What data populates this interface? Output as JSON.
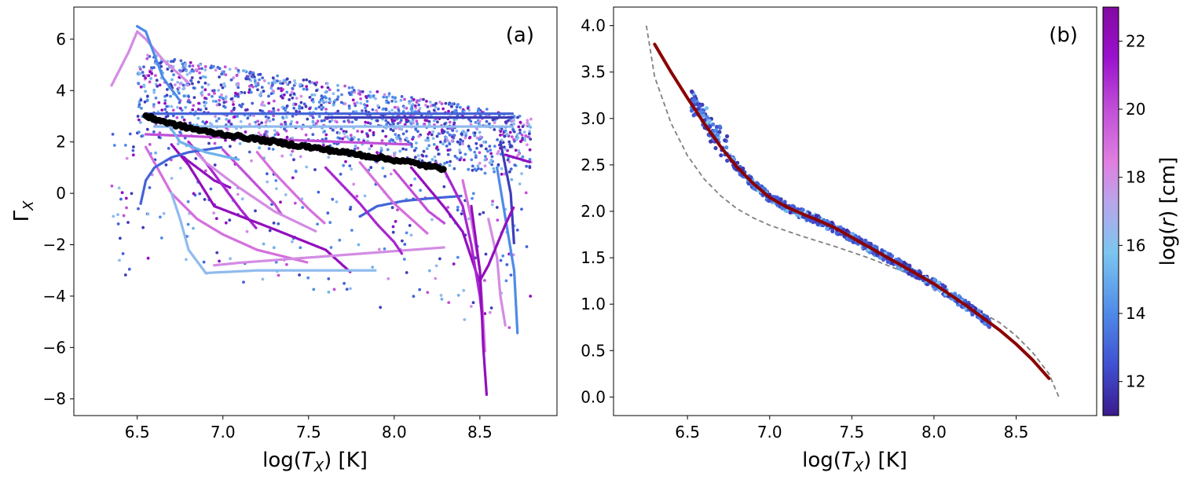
{
  "colors": {
    "cmap": [
      "#3b1a8c",
      "#3f4fd0",
      "#4f8ae8",
      "#7cc6f0",
      "#b8a6ea",
      "#e07fe0",
      "#c04fd8",
      "#9a10cc",
      "#820aa0"
    ],
    "fit_line": "#8b0000",
    "dashed_line": "#808080",
    "black_points": "#000000"
  },
  "chart_data": [
    {
      "panel": "(a)",
      "type": "scatter",
      "xlabel_prefix": "log(",
      "xlabel_var": "T",
      "xlabel_sub": "X",
      "xlabel_suffix": ")   [K]",
      "ylabel_var": "Γ",
      "ylabel_sub": "X",
      "xlim": [
        6.13,
        8.95
      ],
      "ylim": [
        -8.65,
        7.25
      ],
      "xticks": [
        6.5,
        7.0,
        7.5,
        8.0,
        8.5
      ],
      "xtick_labels": [
        "6.5",
        "7.0",
        "7.5",
        "8.0",
        "8.5"
      ],
      "yticks": [
        -8,
        -6,
        -4,
        -2,
        0,
        2,
        4,
        6
      ],
      "ytick_labels": [
        "−8",
        "−6",
        "−4",
        "−2",
        "0",
        "2",
        "4",
        "6"
      ],
      "black_track": {
        "x": [
          6.55,
          6.6,
          6.7,
          6.8,
          6.9,
          7.0,
          7.1,
          7.2,
          7.3,
          7.4,
          7.5,
          7.6,
          7.7,
          7.8,
          7.9,
          8.0,
          8.1,
          8.2,
          8.3
        ],
        "y": [
          3.0,
          2.9,
          2.7,
          2.55,
          2.4,
          2.3,
          2.2,
          2.1,
          2.0,
          1.9,
          1.8,
          1.7,
          1.6,
          1.5,
          1.4,
          1.3,
          1.2,
          1.05,
          0.95
        ]
      },
      "tracks": [
        {
          "x": [
            6.35,
            6.45,
            6.5,
            6.55,
            6.65,
            6.8
          ],
          "y": [
            4.2,
            5.5,
            6.3,
            6.0,
            5.2,
            4.3
          ],
          "c": 18
        },
        {
          "x": [
            6.5,
            6.55,
            6.6,
            6.65,
            6.75
          ],
          "y": [
            6.5,
            6.3,
            5.4,
            4.5,
            3.6
          ],
          "c": 14
        },
        {
          "x": [
            6.55,
            7.0,
            7.5,
            8.0,
            8.5,
            8.7
          ],
          "y": [
            3.1,
            3.1,
            3.1,
            3.1,
            3.1,
            3.1
          ],
          "c": 13
        },
        {
          "x": [
            6.6,
            7.2,
            7.8,
            8.4,
            8.7
          ],
          "y": [
            2.6,
            2.6,
            2.6,
            2.6,
            2.6
          ],
          "c": 16
        },
        {
          "x": [
            7.6,
            8.0,
            8.4,
            8.7
          ],
          "y": [
            2.95,
            2.95,
            2.95,
            2.95
          ],
          "c": 12
        },
        {
          "x": [
            6.75,
            6.85,
            6.95,
            7.05
          ],
          "y": [
            1.5,
            1.0,
            0.5,
            0.2
          ],
          "c": 22
        },
        {
          "x": [
            6.8,
            6.9,
            7.0,
            7.1,
            7.2
          ],
          "y": [
            2.0,
            1.2,
            0.3,
            -0.6,
            -1.4
          ],
          "c": 21
        },
        {
          "x": [
            7.0,
            7.1,
            7.2,
            7.3,
            7.35
          ],
          "y": [
            1.7,
            1.0,
            0.3,
            -0.4,
            -0.9
          ],
          "c": 20
        },
        {
          "x": [
            7.2,
            7.3,
            7.4,
            7.5,
            7.6
          ],
          "y": [
            1.6,
            0.8,
            0.1,
            -0.6,
            -1.2
          ],
          "c": 19
        },
        {
          "x": [
            6.8,
            6.9,
            7.1,
            7.3,
            7.55
          ],
          "y": [
            1.9,
            1.2,
            0.2,
            -0.7,
            -1.5
          ],
          "c": 18
        },
        {
          "x": [
            6.7,
            6.8,
            6.95,
            7.3,
            7.6,
            7.75
          ],
          "y": [
            1.9,
            1.1,
            -0.5,
            -1.4,
            -2.2,
            -3.1
          ],
          "c": 22
        },
        {
          "x": [
            6.55,
            6.6,
            6.7,
            6.85,
            7.0,
            7.2,
            7.5
          ],
          "y": [
            1.8,
            1.2,
            0.0,
            -1.0,
            -1.6,
            -2.2,
            -2.7
          ],
          "c": 19
        },
        {
          "x": [
            6.52,
            6.55,
            6.6,
            6.7,
            6.8,
            6.9,
            7.0
          ],
          "y": [
            -0.4,
            0.5,
            1.0,
            1.4,
            1.6,
            1.7,
            1.8
          ],
          "c": 13
        },
        {
          "x": [
            6.7,
            6.75,
            6.8,
            6.9,
            7.2,
            7.6,
            7.9
          ],
          "y": [
            0.0,
            -1.0,
            -2.2,
            -3.1,
            -3.0,
            -3.0,
            -3.0
          ],
          "c": 16
        },
        {
          "x": [
            6.95,
            7.1,
            7.3,
            7.5,
            7.7,
            7.9,
            8.1,
            8.3
          ],
          "y": [
            -2.8,
            -2.7,
            -2.6,
            -2.5,
            -2.4,
            -2.3,
            -2.2,
            -2.1
          ],
          "c": 18
        },
        {
          "x": [
            7.8,
            7.9,
            8.05,
            8.2,
            8.4
          ],
          "y": [
            -0.9,
            -0.5,
            -0.3,
            -0.2,
            -0.1
          ],
          "c": 13
        },
        {
          "x": [
            7.6,
            7.7,
            7.8,
            7.9,
            8.0,
            8.05
          ],
          "y": [
            1.0,
            0.3,
            -0.4,
            -1.2,
            -1.9,
            -2.4
          ],
          "c": 21
        },
        {
          "x": [
            7.8,
            7.9,
            8.0,
            8.1,
            8.2
          ],
          "y": [
            1.2,
            0.4,
            -0.4,
            -1.0,
            -1.6
          ],
          "c": 19
        },
        {
          "x": [
            8.0,
            8.1,
            8.2,
            8.3
          ],
          "y": [
            0.9,
            0.1,
            -0.7,
            -1.2
          ],
          "c": 20
        },
        {
          "x": [
            8.1,
            8.2,
            8.3,
            8.4,
            8.45,
            8.5
          ],
          "y": [
            1.0,
            0.2,
            -0.6,
            -1.5,
            -2.5,
            -3.5
          ],
          "c": 22
        },
        {
          "x": [
            8.3,
            8.4,
            8.45,
            8.5,
            8.52
          ],
          "y": [
            0.8,
            -0.5,
            -2.0,
            -4.0,
            -5.2
          ],
          "c": 21
        },
        {
          "x": [
            8.4,
            8.45,
            8.5,
            8.52,
            8.53
          ],
          "y": [
            0.5,
            -1.0,
            -3.0,
            -5.0,
            -6.2
          ],
          "c": 19
        },
        {
          "x": [
            8.45,
            8.5,
            8.52,
            8.54
          ],
          "y": [
            -0.5,
            -3.0,
            -6.0,
            -7.9
          ],
          "c": 22
        },
        {
          "x": [
            8.55,
            8.6,
            8.62,
            8.65
          ],
          "y": [
            -1.0,
            -2.5,
            -4.0,
            -5.2
          ],
          "c": 18
        },
        {
          "x": [
            8.6,
            8.65,
            8.7,
            8.72
          ],
          "y": [
            1.0,
            -1.0,
            -3.0,
            -5.5
          ],
          "c": 14
        },
        {
          "x": [
            8.62,
            8.68,
            8.7
          ],
          "y": [
            2.0,
            0.0,
            -2.0
          ],
          "c": 12
        },
        {
          "x": [
            8.65,
            8.7,
            8.75,
            8.8
          ],
          "y": [
            1.5,
            1.4,
            1.3,
            1.2
          ],
          "c": 22
        },
        {
          "x": [
            8.5,
            8.55,
            8.6,
            8.65,
            8.7
          ],
          "y": [
            -3.4,
            -2.8,
            -2.0,
            -1.2,
            -0.5
          ],
          "c": 22
        },
        {
          "x": [
            6.55,
            6.9,
            7.3,
            7.7,
            8.1
          ],
          "y": [
            2.3,
            2.2,
            2.1,
            2.0,
            1.9
          ],
          "c": 20
        },
        {
          "x": [
            6.7,
            6.75,
            6.9,
            7.1
          ],
          "y": [
            2.5,
            2.0,
            1.6,
            1.3
          ],
          "c": 15
        }
      ],
      "scatter_bands": [
        {
          "x_range": [
            6.5,
            8.8
          ],
          "y_top_start": 5.5,
          "y_top_end": 3.0,
          "y_bot_start": 2.2,
          "y_bot_end": 0.5,
          "n": 1400
        },
        {
          "x_range": [
            6.35,
            8.8
          ],
          "y_top_start": 2.5,
          "y_top_end": 0.5,
          "y_bot_start": -3.2,
          "y_bot_end": -5.5,
          "n": 260
        }
      ]
    },
    {
      "panel": "(b)",
      "type": "scatter+line",
      "xlabel_prefix": "log(",
      "xlabel_var": "T",
      "xlabel_sub": "X",
      "xlabel_suffix": ")   [K]",
      "xlim": [
        6.05,
        8.99
      ],
      "ylim": [
        -0.2,
        4.2
      ],
      "xticks": [
        6.5,
        7.0,
        7.5,
        8.0,
        8.5
      ],
      "xtick_labels": [
        "6.5",
        "7.0",
        "7.5",
        "8.0",
        "8.5"
      ],
      "yticks": [
        0.0,
        0.5,
        1.0,
        1.5,
        2.0,
        2.5,
        3.0,
        3.5,
        4.0
      ],
      "ytick_labels": [
        "0.0",
        "0.5",
        "1.0",
        "1.5",
        "2.0",
        "2.5",
        "3.0",
        "3.5",
        "4.0"
      ],
      "fit_line": {
        "x": [
          6.3,
          6.4,
          6.5,
          6.6,
          6.7,
          6.8,
          6.9,
          7.0,
          7.1,
          7.2,
          7.3,
          7.4,
          7.5,
          7.6,
          7.7,
          7.8,
          7.9,
          8.0,
          8.1,
          8.2,
          8.3,
          8.4,
          8.5,
          8.6,
          8.7
        ],
        "y": [
          3.8,
          3.5,
          3.22,
          2.95,
          2.7,
          2.48,
          2.3,
          2.15,
          2.05,
          1.97,
          1.9,
          1.82,
          1.72,
          1.62,
          1.52,
          1.42,
          1.32,
          1.22,
          1.1,
          0.98,
          0.85,
          0.72,
          0.57,
          0.4,
          0.2
        ]
      },
      "dashed_line": {
        "x": [
          6.25,
          6.3,
          6.4,
          6.5,
          6.6,
          6.7,
          6.8,
          6.9,
          7.0,
          7.2,
          7.4,
          7.6,
          7.8,
          8.0,
          8.2,
          8.4,
          8.5,
          8.6,
          8.7,
          8.76
        ],
        "y": [
          4.0,
          3.45,
          2.95,
          2.6,
          2.35,
          2.17,
          2.03,
          1.93,
          1.85,
          1.73,
          1.62,
          1.5,
          1.36,
          1.2,
          1.0,
          0.8,
          0.66,
          0.48,
          0.25,
          0.0
        ]
      },
      "scatter_range": {
        "x": [
          6.52,
          8.35
        ],
        "spread": 0.05,
        "n": 700
      },
      "colorbar": {
        "label_prefix": "log(",
        "label_var": "r",
        "label_suffix": ")   [cm]",
        "range": [
          11.0,
          23.0
        ],
        "ticks": [
          12,
          14,
          16,
          18,
          20,
          22
        ],
        "tick_labels": [
          "12",
          "14",
          "16",
          "18",
          "20",
          "22"
        ]
      }
    }
  ]
}
